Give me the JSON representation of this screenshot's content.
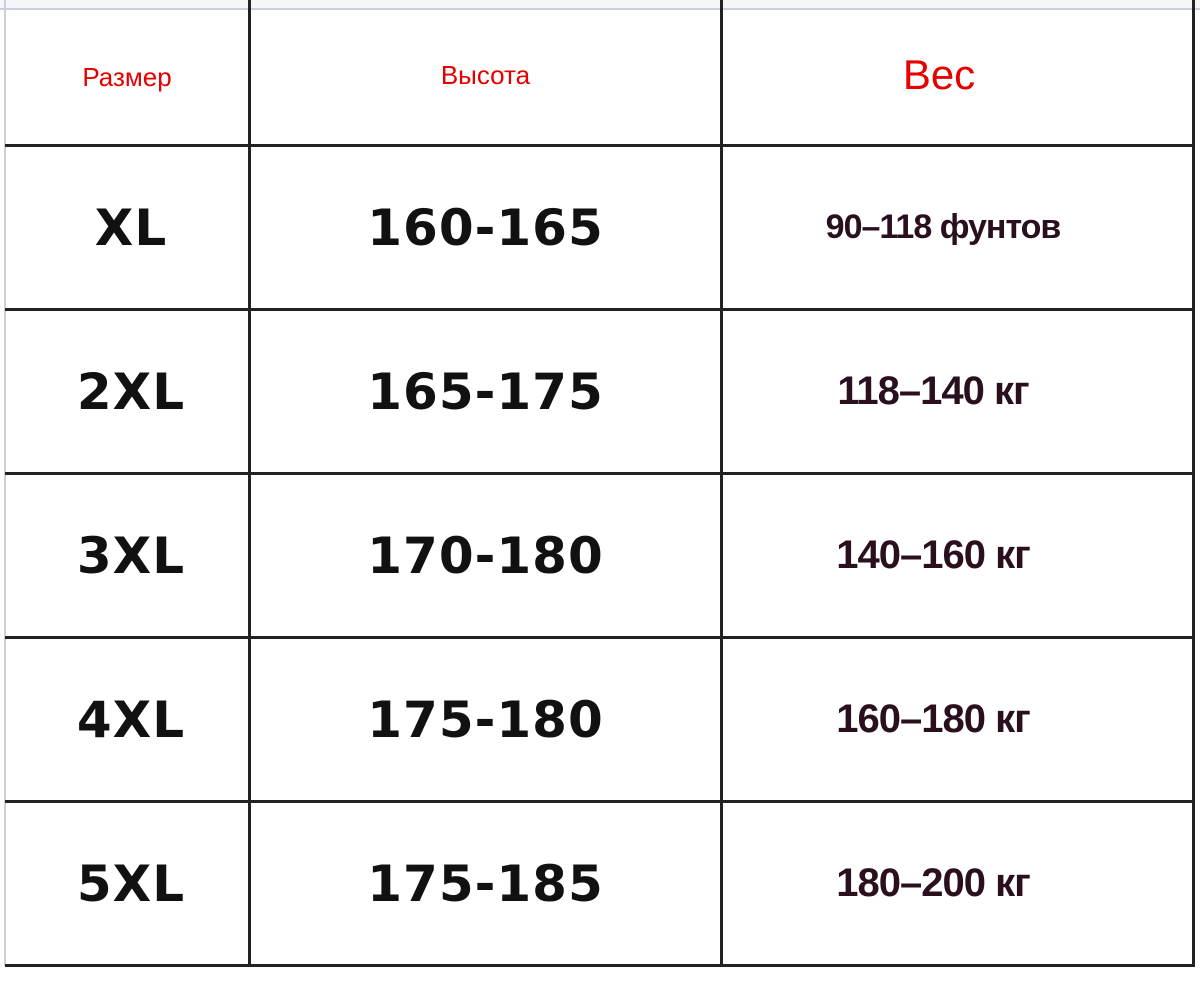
{
  "table": {
    "headers": {
      "size": "Размер",
      "height": "Высота",
      "weight": "Вес"
    },
    "header_color": "#e60000",
    "rows": [
      {
        "size": "XL",
        "height": "160-165",
        "weight": "90–118 фунтов"
      },
      {
        "size": "2XL",
        "height": "165-175",
        "weight": "118–140 кг"
      },
      {
        "size": "3XL",
        "height": "170-180",
        "weight": "140–160 кг"
      },
      {
        "size": "4XL",
        "height": "175-180",
        "weight": "160–180 кг"
      },
      {
        "size": "5XL",
        "height": "175-185",
        "weight": "180–200 кг"
      }
    ]
  }
}
